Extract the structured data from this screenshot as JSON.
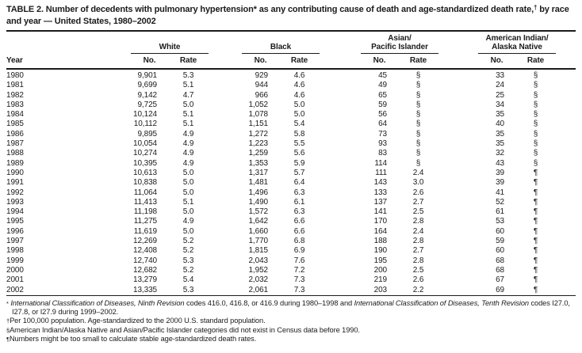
{
  "colors": {
    "text": "#1b1b1b",
    "background": "#ffffff"
  },
  "title": {
    "part1": "TABLE 2. Number of decedents with pulmonary hypertension* as any contributing cause of death and age-standardized death rate,",
    "dagger": "†",
    "part2": " by race and year — United States, 1980–2002"
  },
  "table": {
    "year_header": "Year",
    "groups": [
      {
        "name_lines": [
          "White",
          ""
        ],
        "no": "No.",
        "rate": "Rate"
      },
      {
        "name_lines": [
          "Black",
          ""
        ],
        "no": "No.",
        "rate": "Rate"
      },
      {
        "name_lines": [
          "Asian/",
          "Pacific Islander"
        ],
        "no": "No.",
        "rate": "Rate"
      },
      {
        "name_lines": [
          "American Indian/",
          "Alaska Native"
        ],
        "no": "No.",
        "rate": "Rate"
      }
    ],
    "rows": [
      [
        "1980",
        "9,901",
        "5.3",
        "929",
        "4.6",
        "45",
        "§",
        "33",
        "§"
      ],
      [
        "1981",
        "9,699",
        "5.1",
        "944",
        "4.6",
        "49",
        "§",
        "24",
        "§"
      ],
      [
        "1982",
        "9,142",
        "4.7",
        "966",
        "4.6",
        "65",
        "§",
        "25",
        "§"
      ],
      [
        "1983",
        "9,725",
        "5.0",
        "1,052",
        "5.0",
        "59",
        "§",
        "34",
        "§"
      ],
      [
        "1984",
        "10,124",
        "5.1",
        "1,078",
        "5.0",
        "56",
        "§",
        "35",
        "§"
      ],
      [
        "1985",
        "10,112",
        "5.1",
        "1,151",
        "5.4",
        "64",
        "§",
        "40",
        "§"
      ],
      [
        "1986",
        "9,895",
        "4.9",
        "1,272",
        "5.8",
        "73",
        "§",
        "35",
        "§"
      ],
      [
        "1987",
        "10,054",
        "4.9",
        "1,223",
        "5.5",
        "93",
        "§",
        "35",
        "§"
      ],
      [
        "1988",
        "10,274",
        "4.9",
        "1,259",
        "5.6",
        "83",
        "§",
        "32",
        "§"
      ],
      [
        "1989",
        "10,395",
        "4.9",
        "1,353",
        "5.9",
        "114",
        "§",
        "43",
        "§"
      ],
      [
        "1990",
        "10,613",
        "5.0",
        "1,317",
        "5.7",
        "111",
        "2.4",
        "39",
        "¶"
      ],
      [
        "1991",
        "10,838",
        "5.0",
        "1,481",
        "6.4",
        "143",
        "3.0",
        "39",
        "¶"
      ],
      [
        "1992",
        "11,064",
        "5.0",
        "1,496",
        "6.3",
        "133",
        "2.6",
        "41",
        "¶"
      ],
      [
        "1993",
        "11,413",
        "5.1",
        "1,490",
        "6.1",
        "137",
        "2.7",
        "52",
        "¶"
      ],
      [
        "1994",
        "11,198",
        "5.0",
        "1,572",
        "6.3",
        "141",
        "2.5",
        "61",
        "¶"
      ],
      [
        "1995",
        "11,275",
        "4.9",
        "1,642",
        "6.6",
        "170",
        "2.8",
        "53",
        "¶"
      ],
      [
        "1996",
        "11,619",
        "5.0",
        "1,660",
        "6.6",
        "164",
        "2.4",
        "60",
        "¶"
      ],
      [
        "1997",
        "12,269",
        "5.2",
        "1,770",
        "6.8",
        "188",
        "2.8",
        "59",
        "¶"
      ],
      [
        "1998",
        "12,408",
        "5.2",
        "1,815",
        "6.9",
        "190",
        "2.7",
        "60",
        "¶"
      ],
      [
        "1999",
        "12,740",
        "5.3",
        "2,043",
        "7.6",
        "195",
        "2.8",
        "68",
        "¶"
      ],
      [
        "2000",
        "12,682",
        "5.2",
        "1,952",
        "7.2",
        "200",
        "2.5",
        "68",
        "¶"
      ],
      [
        "2001",
        "13,279",
        "5.4",
        "2,032",
        "7.3",
        "219",
        "2.6",
        "67",
        "¶"
      ],
      [
        "2002",
        "13,335",
        "5.3",
        "2,061",
        "7.3",
        "203",
        "2.2",
        "69",
        "¶"
      ]
    ]
  },
  "footnotes": [
    {
      "marker": "*",
      "seg1": "International Classification of Diseases, Ninth Revision",
      "seg2": " codes 416.0, 416.8, or 416.9 during 1980–1998 and ",
      "seg3": "International Classification of Diseases, Tenth Revision",
      "seg4": " codes I27.0, I27.8, or I27.9 during 1999–2002."
    },
    {
      "marker": "†",
      "text": "Per 100,000 population. Age-standardized to the 2000 U.S. standard population."
    },
    {
      "marker": "§",
      "text": "American Indian/Alaska Native and Asian/Pacific Islander categories did not exist in Census data before 1990."
    },
    {
      "marker": "¶",
      "text": "Numbers might be too small to calculate stable age-standardized death rates."
    }
  ]
}
